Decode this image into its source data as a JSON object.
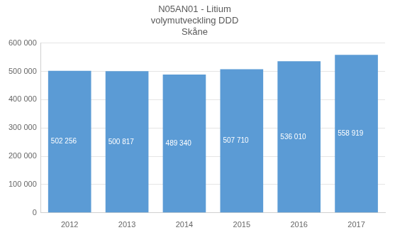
{
  "chart_data": {
    "type": "bar",
    "title": "N05AN01 - Litium\nvolymutveckling DDD\nSkåne",
    "categories": [
      "2012",
      "2013",
      "2014",
      "2015",
      "2016",
      "2017"
    ],
    "values": [
      502256,
      500817,
      489340,
      507710,
      536010,
      558919
    ],
    "value_labels": [
      "502 256",
      "500 817",
      "489 340",
      "507 710",
      "536 010",
      "558 919"
    ],
    "data_labels": true,
    "color": "#5B9BD5",
    "ylim": [
      0,
      600000
    ],
    "yticks": [
      0,
      {
        "value": 100000,
        "label": "100 000"
      },
      {
        "value": 200000,
        "label": "200 000"
      },
      {
        "value": 300000,
        "label": "300 000"
      },
      {
        "value": 400000,
        "label": "400 000"
      },
      {
        "value": 500000,
        "label": "500 000"
      },
      {
        "value": 600000,
        "label": "600 000"
      }
    ],
    "grid": true
  }
}
